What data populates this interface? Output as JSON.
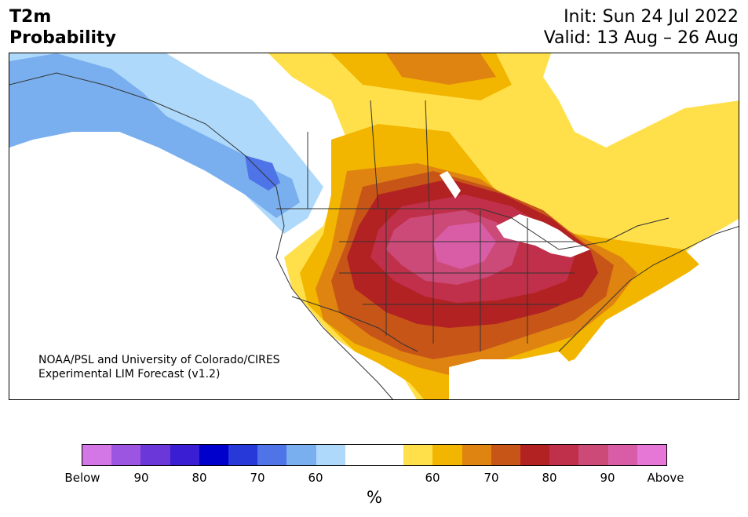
{
  "header": {
    "title_line1": "T2m",
    "title_line2": "Probability",
    "init": "Init: Sun 24 Jul 2022",
    "valid": "Valid: 13 Aug – 26 Aug"
  },
  "credit": {
    "line1": "NOAA/PSL and University of Colorado/CIRES",
    "line2": "Experimental LIM Forecast (v1.2)"
  },
  "colorbar": {
    "colors": [
      "#d477e6",
      "#9b55e0",
      "#6b37d8",
      "#3a1ed4",
      "#0000cc",
      "#2739d8",
      "#4e74e8",
      "#79afef",
      "#aed9fb",
      "#ffffff",
      "#ffffff",
      "#ffe04a",
      "#f2b500",
      "#df8410",
      "#c85518",
      "#b22222",
      "#c0304a",
      "#cc4a78",
      "#d95da6",
      "#e677d6"
    ],
    "ticks": [
      "Below",
      "90",
      "80",
      "70",
      "60",
      "60",
      "70",
      "80",
      "90",
      "Above"
    ],
    "units": "%"
  },
  "map": {
    "colors": {
      "blue_pale": "#aed9fb",
      "blue_light": "#79afef",
      "blue_mid": "#4e74e8",
      "yellow": "#ffe04a",
      "gold": "#f2b500",
      "orange": "#df8410",
      "dark_orange": "#c85518",
      "red": "#b22222",
      "crimson": "#c0304a",
      "rose": "#cc4a78",
      "pink": "#d95da6",
      "border": "#333333"
    }
  }
}
